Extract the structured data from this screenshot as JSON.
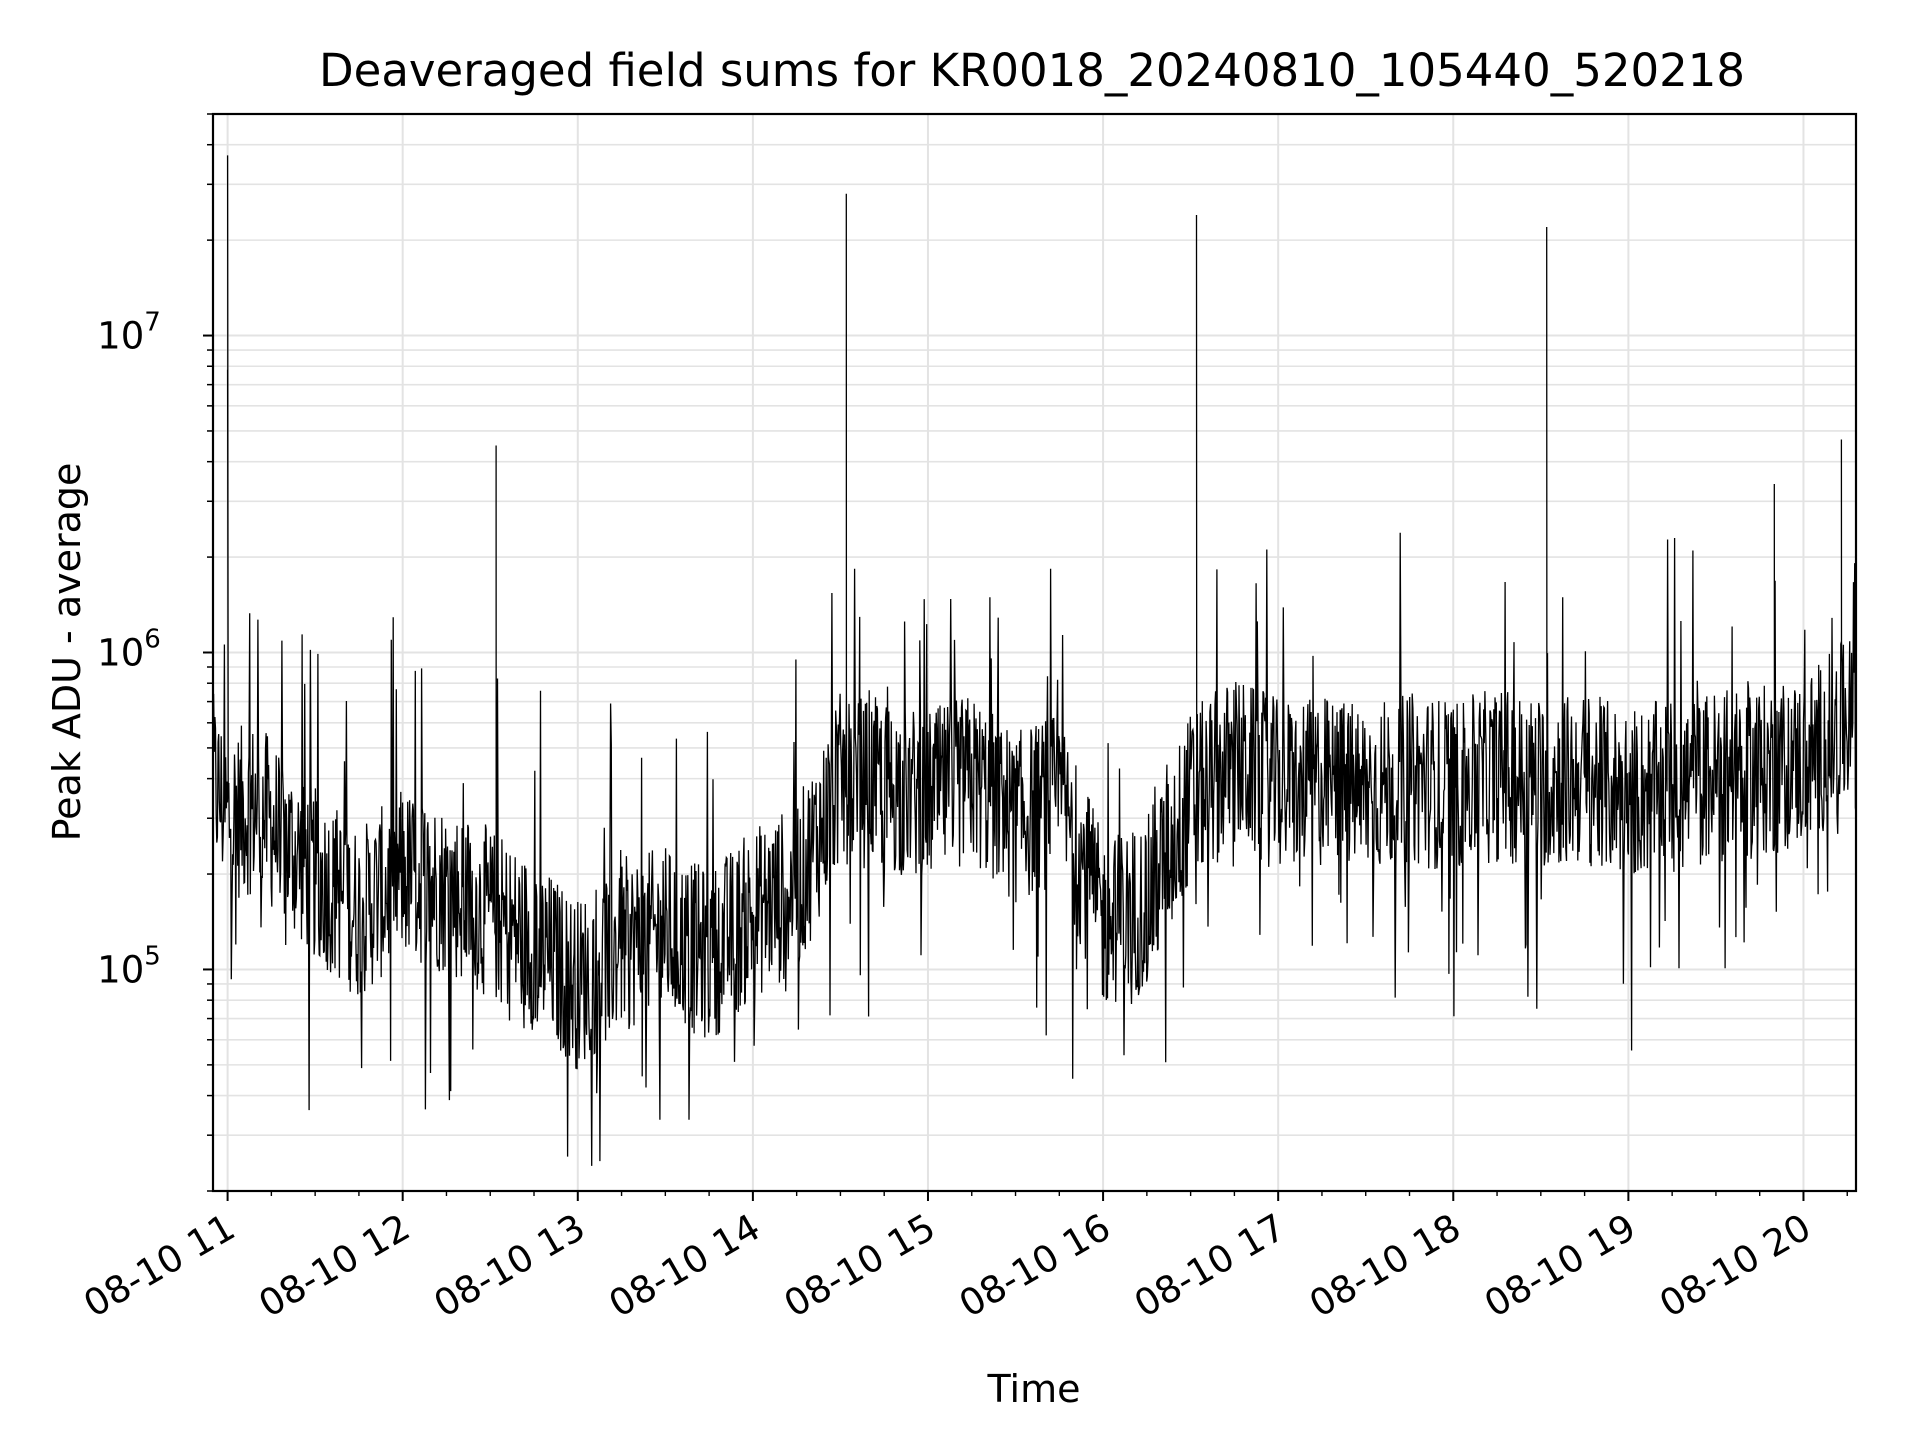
{
  "chart_data": {
    "type": "line",
    "title": "Deaveraged field sums for KR0018_20240810_105440_520218",
    "xlabel": "Time",
    "ylabel": "Peak ADU - average",
    "yscale": "log",
    "ylim": [
      20000,
      50000000
    ],
    "xlim": [
      "08-10 10:55",
      "08-10 20:18"
    ],
    "grid": true,
    "series_color": "#000000",
    "x_ticks": [
      "08-10 11",
      "08-10 12",
      "08-10 13",
      "08-10 14",
      "08-10 15",
      "08-10 16",
      "08-10 17",
      "08-10 18",
      "08-10 19",
      "08-10 20"
    ],
    "y_ticks": [
      {
        "value": 100000,
        "base": "10",
        "exp": "5"
      },
      {
        "value": 1000000,
        "base": "10",
        "exp": "6"
      },
      {
        "value": 10000000,
        "base": "10",
        "exp": "7"
      }
    ],
    "series": [
      {
        "x": [
          "08-10 10:55",
          "08-10 11:00",
          "08-10 11:10",
          "08-10 11:20",
          "08-10 11:30",
          "08-10 11:45",
          "08-10 12:00",
          "08-10 12:15",
          "08-10 12:30",
          "08-10 12:45",
          "08-10 13:00",
          "08-10 13:15",
          "08-10 13:30",
          "08-10 13:45",
          "08-10 14:00",
          "08-10 14:15",
          "08-10 14:30",
          "08-10 14:45",
          "08-10 15:00",
          "08-10 15:15",
          "08-10 15:30",
          "08-10 15:45",
          "08-10 16:00",
          "08-10 16:15",
          "08-10 16:30",
          "08-10 16:45",
          "08-10 17:00",
          "08-10 17:15",
          "08-10 17:30",
          "08-10 17:45",
          "08-10 18:00",
          "08-10 18:15",
          "08-10 18:30",
          "08-10 18:45",
          "08-10 19:00",
          "08-10 19:15",
          "08-10 19:30",
          "08-10 19:45",
          "08-10 20:00",
          "08-10 20:15",
          "08-10 20:18"
        ],
        "y": [
          400000,
          300000,
          330000,
          250000,
          200000,
          150000,
          200000,
          180000,
          150000,
          120000,
          90000,
          120000,
          130000,
          110000,
          150000,
          180000,
          400000,
          380000,
          350000,
          400000,
          300000,
          350000,
          140000,
          160000,
          350000,
          450000,
          380000,
          390000,
          370000,
          400000,
          380000,
          410000,
          390000,
          400000,
          360000,
          380000,
          410000,
          420000,
          450000,
          600000,
          550000
        ],
        "spikes": [
          {
            "x": "08-10 11:00",
            "y": 37000000
          },
          {
            "x": "08-10 11:00",
            "y": 7800000
          },
          {
            "x": "08-10 12:32",
            "y": 4500000
          },
          {
            "x": "08-10 14:32",
            "y": 28000000
          },
          {
            "x": "08-10 16:32",
            "y": 24000000
          },
          {
            "x": "08-10 18:32",
            "y": 22000000
          },
          {
            "x": "08-10 19:50",
            "y": 3400000
          },
          {
            "x": "08-10 20:13",
            "y": 4700000
          }
        ]
      }
    ]
  }
}
